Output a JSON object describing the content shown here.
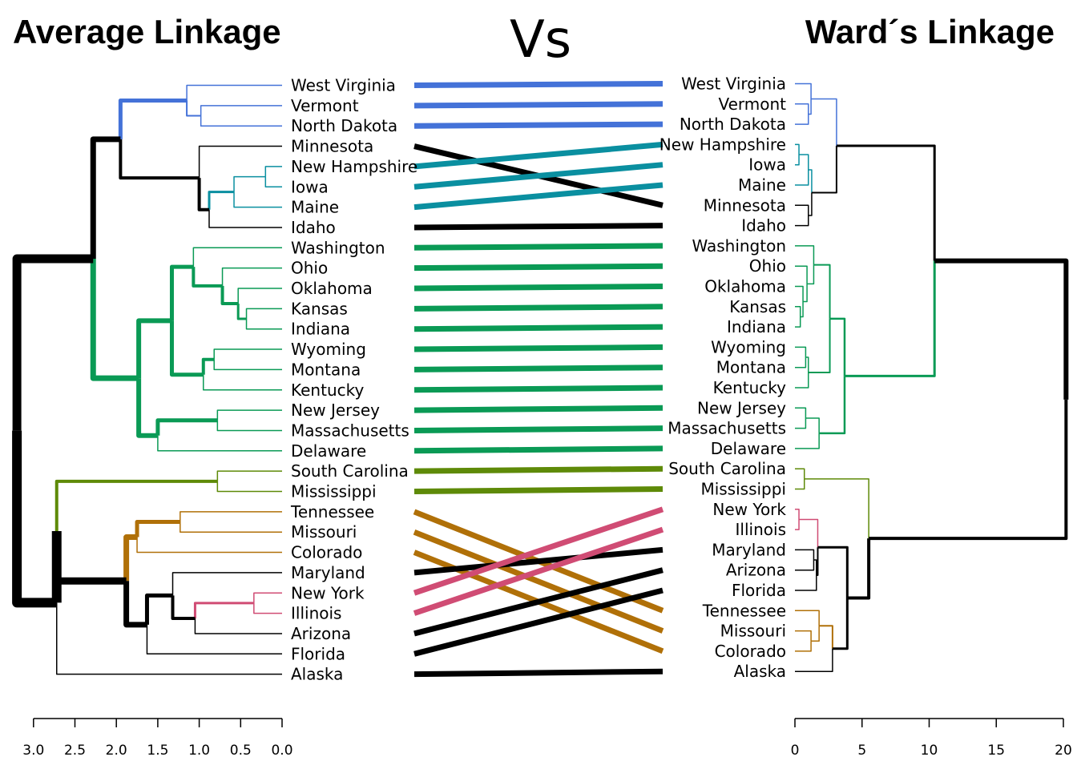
{
  "chart_data": {
    "type": "tanglegram",
    "title_left": "Average Linkage",
    "title_center": "Vs",
    "title_right": "Ward´s Linkage",
    "left_axis": {
      "ticks": [
        "3.0",
        "2.5",
        "2.0",
        "1.5",
        "1.0",
        "0.5",
        "0.0"
      ],
      "range": [
        3.0,
        0.0
      ]
    },
    "right_axis": {
      "ticks": [
        "0",
        "5",
        "10",
        "15",
        "20"
      ],
      "range": [
        0,
        20
      ]
    },
    "left_labels": [
      "West Virginia",
      "Vermont",
      "North Dakota",
      "Minnesota",
      "New Hampshire",
      "Iowa",
      "Maine",
      "Idaho",
      "Washington",
      "Ohio",
      "Oklahoma",
      "Kansas",
      "Indiana",
      "Wyoming",
      "Montana",
      "Kentucky",
      "New Jersey",
      "Massachusetts",
      "Delaware",
      "South Carolina",
      "Mississippi",
      "Tennessee",
      "Missouri",
      "Colorado",
      "Maryland",
      "New York",
      "Illinois",
      "Arizona",
      "Florida",
      "Alaska"
    ],
    "right_labels": [
      "West Virginia",
      "Vermont",
      "North Dakota",
      "New Hampshire",
      "Iowa",
      "Maine",
      "Minnesota",
      "Idaho",
      "Washington",
      "Ohio",
      "Oklahoma",
      "Kansas",
      "Indiana",
      "Wyoming",
      "Montana",
      "Kentucky",
      "New Jersey",
      "Massachusetts",
      "Delaware",
      "South Carolina",
      "Mississippi",
      "New York",
      "Illinois",
      "Maryland",
      "Arizona",
      "Florida",
      "Tennessee",
      "Missouri",
      "Colorado",
      "Alaska"
    ],
    "colors": {
      "blue": "#4472D8",
      "teal": "#0A8FA0",
      "green": "#0A9A55",
      "olive": "#5E8A08",
      "orange": "#B07008",
      "pink": "#D04C74",
      "black": "#000000"
    },
    "connectors": [
      {
        "l": 0,
        "r": 0,
        "color": "blue"
      },
      {
        "l": 1,
        "r": 1,
        "color": "blue"
      },
      {
        "l": 2,
        "r": 2,
        "color": "blue"
      },
      {
        "l": 3,
        "r": 6,
        "color": "black"
      },
      {
        "l": 4,
        "r": 3,
        "color": "teal"
      },
      {
        "l": 5,
        "r": 4,
        "color": "teal"
      },
      {
        "l": 6,
        "r": 5,
        "color": "teal"
      },
      {
        "l": 7,
        "r": 7,
        "color": "black"
      },
      {
        "l": 8,
        "r": 8,
        "color": "green"
      },
      {
        "l": 9,
        "r": 9,
        "color": "green"
      },
      {
        "l": 10,
        "r": 10,
        "color": "green"
      },
      {
        "l": 11,
        "r": 11,
        "color": "green"
      },
      {
        "l": 12,
        "r": 12,
        "color": "green"
      },
      {
        "l": 13,
        "r": 13,
        "color": "green"
      },
      {
        "l": 14,
        "r": 14,
        "color": "green"
      },
      {
        "l": 15,
        "r": 15,
        "color": "green"
      },
      {
        "l": 16,
        "r": 16,
        "color": "green"
      },
      {
        "l": 17,
        "r": 17,
        "color": "green"
      },
      {
        "l": 18,
        "r": 18,
        "color": "green"
      },
      {
        "l": 19,
        "r": 19,
        "color": "olive"
      },
      {
        "l": 20,
        "r": 20,
        "color": "olive"
      },
      {
        "l": 21,
        "r": 26,
        "color": "orange"
      },
      {
        "l": 22,
        "r": 27,
        "color": "orange"
      },
      {
        "l": 23,
        "r": 28,
        "color": "orange"
      },
      {
        "l": 24,
        "r": 23,
        "color": "black"
      },
      {
        "l": 25,
        "r": 21,
        "color": "pink"
      },
      {
        "l": 26,
        "r": 22,
        "color": "pink"
      },
      {
        "l": 27,
        "r": 24,
        "color": "black"
      },
      {
        "l": 28,
        "r": 25,
        "color": "black"
      },
      {
        "l": 29,
        "r": 29,
        "color": "black"
      }
    ]
  }
}
